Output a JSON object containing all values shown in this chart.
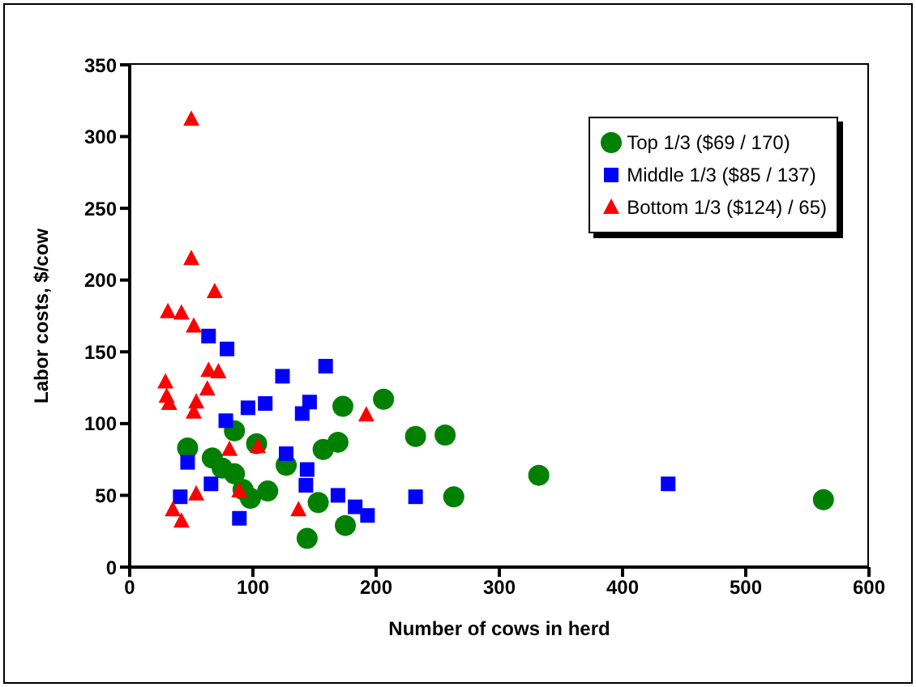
{
  "chart_data": {
    "type": "scatter",
    "xlabel": "Number of cows in herd",
    "ylabel": "Labor costs, $/cow",
    "xlim": [
      0,
      600
    ],
    "xticks": [
      0,
      100,
      200,
      300,
      400,
      500,
      600
    ],
    "ylim": [
      0,
      350
    ],
    "yticks": [
      0,
      50,
      100,
      150,
      200,
      250,
      300,
      350
    ],
    "grid": false,
    "legend": "top right",
    "series": [
      {
        "name": "Top 1/3 ($69 / 170)",
        "color": "#008000",
        "marker": "circle",
        "x": [
          47,
          67,
          75,
          85,
          85,
          103,
          92,
          98,
          112,
          127,
          144,
          153,
          157,
          169,
          173,
          175,
          206,
          232,
          256,
          263,
          332,
          563
        ],
        "values": [
          83,
          76,
          69,
          95,
          65,
          86,
          54,
          48,
          53,
          71,
          20,
          45,
          82,
          87,
          112,
          29,
          117,
          91,
          92,
          49,
          64,
          47
        ]
      },
      {
        "name": "Middle 1/3 ($85 / 137)",
        "color": "#0000ff",
        "marker": "square",
        "x": [
          64,
          79,
          124,
          159,
          96,
          110,
          140,
          146,
          78,
          127,
          47,
          144,
          66,
          143,
          41,
          169,
          183,
          193,
          89,
          232,
          437
        ],
        "values": [
          161,
          152,
          133,
          140,
          111,
          114,
          107,
          115,
          102,
          79,
          73,
          68,
          58,
          57,
          49,
          50,
          42,
          36,
          34,
          49,
          58
        ]
      },
      {
        "name": "Bottom 1/3 ($124) / 65)",
        "color": "#ff0000",
        "marker": "triangle",
        "x": [
          50,
          50,
          69,
          31,
          42,
          52,
          29,
          30,
          32,
          64,
          72,
          63,
          54,
          52,
          81,
          104,
          89,
          54,
          192,
          137,
          35,
          42
        ],
        "values": [
          312,
          215,
          192,
          178,
          177,
          168,
          129,
          119,
          114,
          137,
          136,
          124,
          115,
          108,
          82,
          84,
          53,
          51,
          106,
          40,
          40,
          32
        ]
      }
    ]
  }
}
